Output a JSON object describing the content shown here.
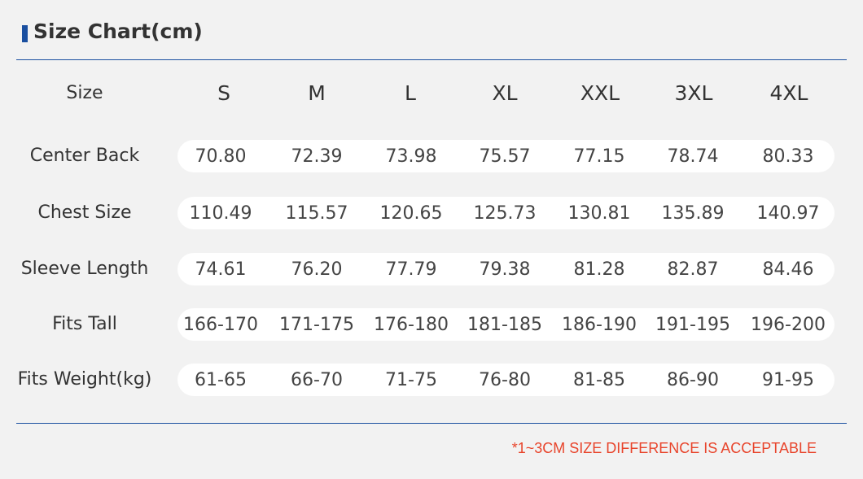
{
  "title": "Size Chart(cm)",
  "colors": {
    "accent": "#1a4fa0",
    "background": "#f2f2f2",
    "row_background": "#ffffff",
    "note": "#e8452c",
    "text": "#333333"
  },
  "table": {
    "header_label": "Size",
    "sizes": [
      "S",
      "M",
      "L",
      "XL",
      "XXL",
      "3XL",
      "4XL"
    ],
    "rows": [
      {
        "label": "Center Back",
        "values": [
          "70.80",
          "72.39",
          "73.98",
          "75.57",
          "77.15",
          "78.74",
          "80.33"
        ]
      },
      {
        "label": "Chest Size",
        "values": [
          "110.49",
          "115.57",
          "120.65",
          "125.73",
          "130.81",
          "135.89",
          "140.97"
        ]
      },
      {
        "label": "Sleeve Length",
        "values": [
          "74.61",
          "76.20",
          "77.79",
          "79.38",
          "81.28",
          "82.87",
          "84.46"
        ]
      },
      {
        "label": "Fits Tall",
        "values": [
          "166-170",
          "171-175",
          "176-180",
          "181-185",
          "186-190",
          "191-195",
          "196-200"
        ]
      },
      {
        "label": "Fits Weight(kg)",
        "values": [
          "61-65",
          "66-70",
          "71-75",
          "76-80",
          "81-85",
          "86-90",
          "91-95"
        ]
      }
    ]
  },
  "note": "*1~3CM SIZE DIFFERENCE IS ACCEPTABLE"
}
